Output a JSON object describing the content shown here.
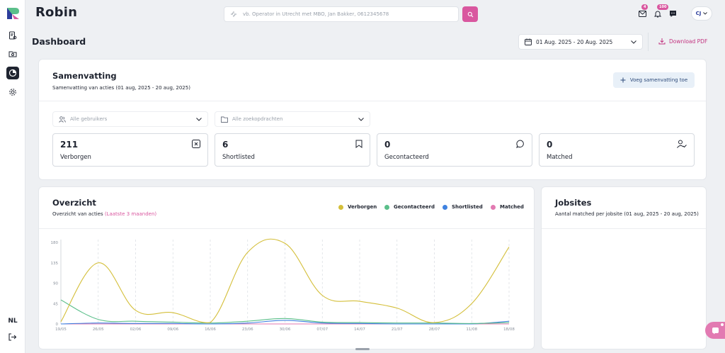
{
  "app": {
    "brand": "Robin",
    "language": "NL"
  },
  "search": {
    "placeholder": "vb. Operator in Utrecht met MBO, Jan Bakker, 0612345678"
  },
  "topbar": {
    "mail_badge": "4",
    "notifications_badge": "100",
    "user_initials": "CJ"
  },
  "page": {
    "title": "Dashboard",
    "date_range": "01 Aug. 2025 - 20 Aug. 2025",
    "download_label": "Download PDF"
  },
  "summary": {
    "title": "Samenvatting",
    "subtitle": "Samenvatting van acties (01 aug, 2025 - 20 aug, 2025)",
    "add_button": "Voeg samenvatting toe",
    "filter_users": "Alle gebruikers",
    "filter_searches": "Alle zoekopdrachten",
    "stats": [
      {
        "value": "211",
        "label": "Verborgen",
        "icon": "x-square-icon"
      },
      {
        "value": "6",
        "label": "Shortlisted",
        "icon": "bookmark-icon"
      },
      {
        "value": "0",
        "label": "Gecontacteerd",
        "icon": "chat-bubble-icon"
      },
      {
        "value": "0",
        "label": "Matched",
        "icon": "user-check-icon"
      }
    ]
  },
  "overview": {
    "title": "Overzicht",
    "subtitle": "Overzicht van acties",
    "subtitle_accent": "(Laatste 3 maanden)"
  },
  "jobsites": {
    "title": "Jobsites",
    "subtitle": "Aantal matched per jobsite (01 aug, 2025 - 20 aug, 2025)"
  },
  "colors": {
    "accent": "#d9579f",
    "verborgen": "#d4bf3a",
    "gecontacteerd": "#5bbf8a",
    "shortlisted": "#3f82e0",
    "matched": "#e27ab2"
  },
  "chart_data": {
    "type": "line",
    "x": [
      "19/05",
      "26/05",
      "02/06",
      "09/06",
      "16/06",
      "23/06",
      "30/06",
      "07/07",
      "14/07",
      "21/07",
      "28/07",
      "11/08",
      "18/08"
    ],
    "ylim": [
      0,
      180
    ],
    "yticks": [
      0,
      45,
      90,
      135,
      180
    ],
    "grid": "vertical dashed",
    "legend_position": "top-right",
    "series": [
      {
        "name": "Verborgen",
        "color": "#d4bf3a",
        "values": [
          5,
          135,
          30,
          25,
          3,
          158,
          178,
          63,
          50,
          35,
          3,
          45,
          170
        ]
      },
      {
        "name": "Gecontacteerd",
        "color": "#5bbf8a",
        "values": [
          53,
          10,
          6,
          4,
          2,
          6,
          12,
          4,
          3,
          2,
          2,
          1,
          3
        ]
      },
      {
        "name": "Shortlisted",
        "color": "#3f82e0",
        "values": [
          0,
          2,
          1,
          1,
          0,
          2,
          8,
          2,
          1,
          0,
          0,
          0,
          6
        ]
      },
      {
        "name": "Matched",
        "color": "#e27ab2",
        "values": [
          0,
          0,
          0,
          0,
          0,
          0,
          0,
          0,
          0,
          0,
          0,
          0,
          0
        ]
      }
    ]
  }
}
